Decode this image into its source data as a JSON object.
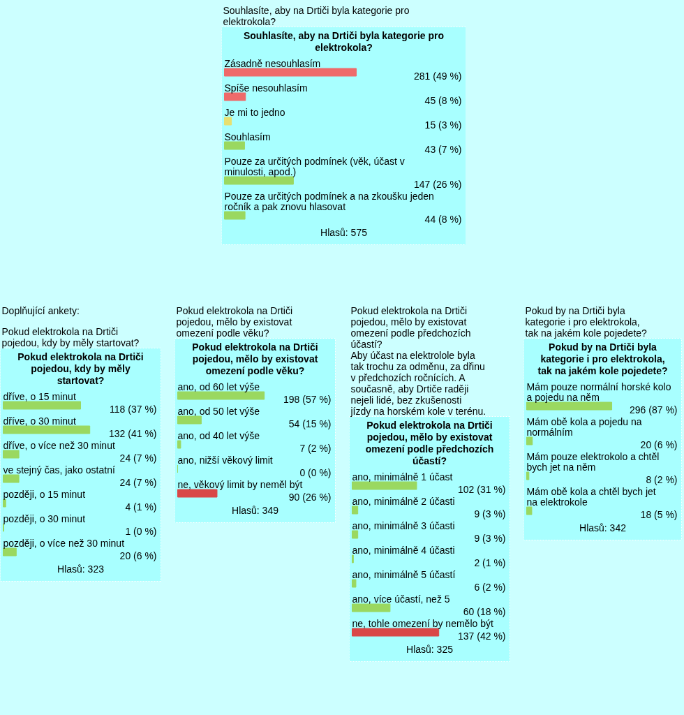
{
  "chart_data": [
    {
      "type": "bar",
      "orientation": "horizontal",
      "title": "Souhlasíte, aby na Drtiči byla kategorie pro elektrokola?",
      "subtitle": "Souhlasíte, aby na Drtiči byla kategorie pro elektrokola?",
      "categories": [
        "Zásadně nesouhlasím",
        "Spíše nesouhlasím",
        "Je mi to jedno",
        "Souhlasím",
        "Pouze za určitých podmínek (věk, účast v minulosti, apod.)",
        "Pouze za určitých podmínek a na zkoušku jeden ročník a pak znovu hlasovat"
      ],
      "values": [
        281,
        45,
        15,
        43,
        147,
        44
      ],
      "value_labels": [
        "281 (49 %)",
        "45 (8 %)",
        "15 (3 %)",
        "43 (7 %)",
        "147 (26 %)",
        "44 (8 %)"
      ],
      "colors": [
        "#ee6a6a",
        "#ee6a6a",
        "#e8e070",
        "#9ad860",
        "#9ad860",
        "#9ad860"
      ],
      "annotations": [
        "Hlasů: 575"
      ]
    },
    {
      "type": "bar",
      "orientation": "horizontal",
      "title": "Pokud elektrokola na Drtiči pojedou, kdy by měly startovat?",
      "subtitle": "Pokud elektrokola na Drtiči pojedou, kdy by měly startovat?",
      "categories": [
        "dříve, o 15 minut",
        "dříve, o 30 minut",
        "dříve, o více než 30 minut",
        "ve stejný čas, jako ostatní",
        "později, o 15 minut",
        "později, o 30 minut",
        "později, o více než 30 minut"
      ],
      "values": [
        118,
        132,
        24,
        24,
        4,
        1,
        20
      ],
      "value_labels": [
        "118 (37 %)",
        "132 (41 %)",
        "24 (7 %)",
        "24 (7 %)",
        "4 (1 %)",
        "1 (0 %)",
        "20 (6 %)"
      ],
      "colors": [
        "#9ad860",
        "#9ad860",
        "#9ad860",
        "#9ad860",
        "#9ad860",
        "#9ad860",
        "#9ad860"
      ],
      "annotations": [
        "Doplňující ankety:",
        "Hlasů: 323"
      ]
    },
    {
      "type": "bar",
      "orientation": "horizontal",
      "title": "Pokud elektrokola na Drtiči pojedou, mělo by existovat omezení podle věku?",
      "subtitle": "Pokud elektrokola na Drtiči pojedou, mělo by existovat omezení podle věku?",
      "categories": [
        "ano, od 60 let výše",
        "ano, od 50 let výše",
        "ano, od 40 let výše",
        "ano, nižší věkový limit",
        "ne, věkový limit by neměl být"
      ],
      "values": [
        198,
        54,
        7,
        0,
        90
      ],
      "value_labels": [
        "198 (57 %)",
        "54 (15 %)",
        "7 (2 %)",
        "0 (0 %)",
        "90 (26 %)"
      ],
      "colors": [
        "#9ad860",
        "#9ad860",
        "#9ad860",
        "#9ad860",
        "#d94848"
      ],
      "annotations": [
        "Hlasů: 349"
      ]
    },
    {
      "type": "bar",
      "orientation": "horizontal",
      "title": "Pokud elektrokola na Drtiči pojedou, mělo by existovat omezení podle předchozích účastí?\nAby účast na elektrolole byla tak trochu za odměnu, za dřinu v předchozích ročnících. A současně, aby Drtiče raději nejeli lidé, bez zkušenosti jízdy na horském kole v terénu.",
      "subtitle": "Pokud elektrokola na Drtiči pojedou, mělo by existovat omezení podle předchozích účastí?",
      "categories": [
        "ano, minimálně 1 účast",
        "ano, minimálně 2 účasti",
        "ano, minimálně 3 účasti",
        "ano, minimálně 4 účasti",
        "ano, minimálně 5 účastí",
        "ano, více účastí, než 5",
        "ne, tohle omezení by nemělo být"
      ],
      "values": [
        102,
        9,
        9,
        2,
        6,
        60,
        137
      ],
      "value_labels": [
        "102 (31 %)",
        "9 (3 %)",
        "9 (3 %)",
        "2 (1 %)",
        "6 (2 %)",
        "60 (18 %)",
        "137 (42 %)"
      ],
      "colors": [
        "#9ad860",
        "#9ad860",
        "#9ad860",
        "#9ad860",
        "#9ad860",
        "#9ad860",
        "#d94848"
      ],
      "annotations": [
        "Hlasů: 325"
      ]
    },
    {
      "type": "bar",
      "orientation": "horizontal",
      "title": "Pokud by na Drtiči byla kategorie i pro elektrokola, tak na jakém kole pojedete?",
      "subtitle": "Pokud by na Drtiči byla kategorie i pro elektrokola, tak na jakém kole pojedete?",
      "categories": [
        "Mám pouze normální horské kolo a pojedu na něm",
        "Mám obě kola a pojedu na normálním",
        "Mám pouze elektrokolo a chtěl bych jet na něm",
        "Mám obě kola a chtěl bych jet na elektrokole"
      ],
      "values": [
        296,
        20,
        8,
        18
      ],
      "value_labels": [
        "296 (87 %)",
        "20 (6 %)",
        "8 (2 %)",
        "18 (5 %)"
      ],
      "colors": [
        "#9ad860",
        "#9ad860",
        "#9ad860",
        "#9ad860"
      ],
      "annotations": [
        "Hlasů: 342"
      ]
    }
  ]
}
